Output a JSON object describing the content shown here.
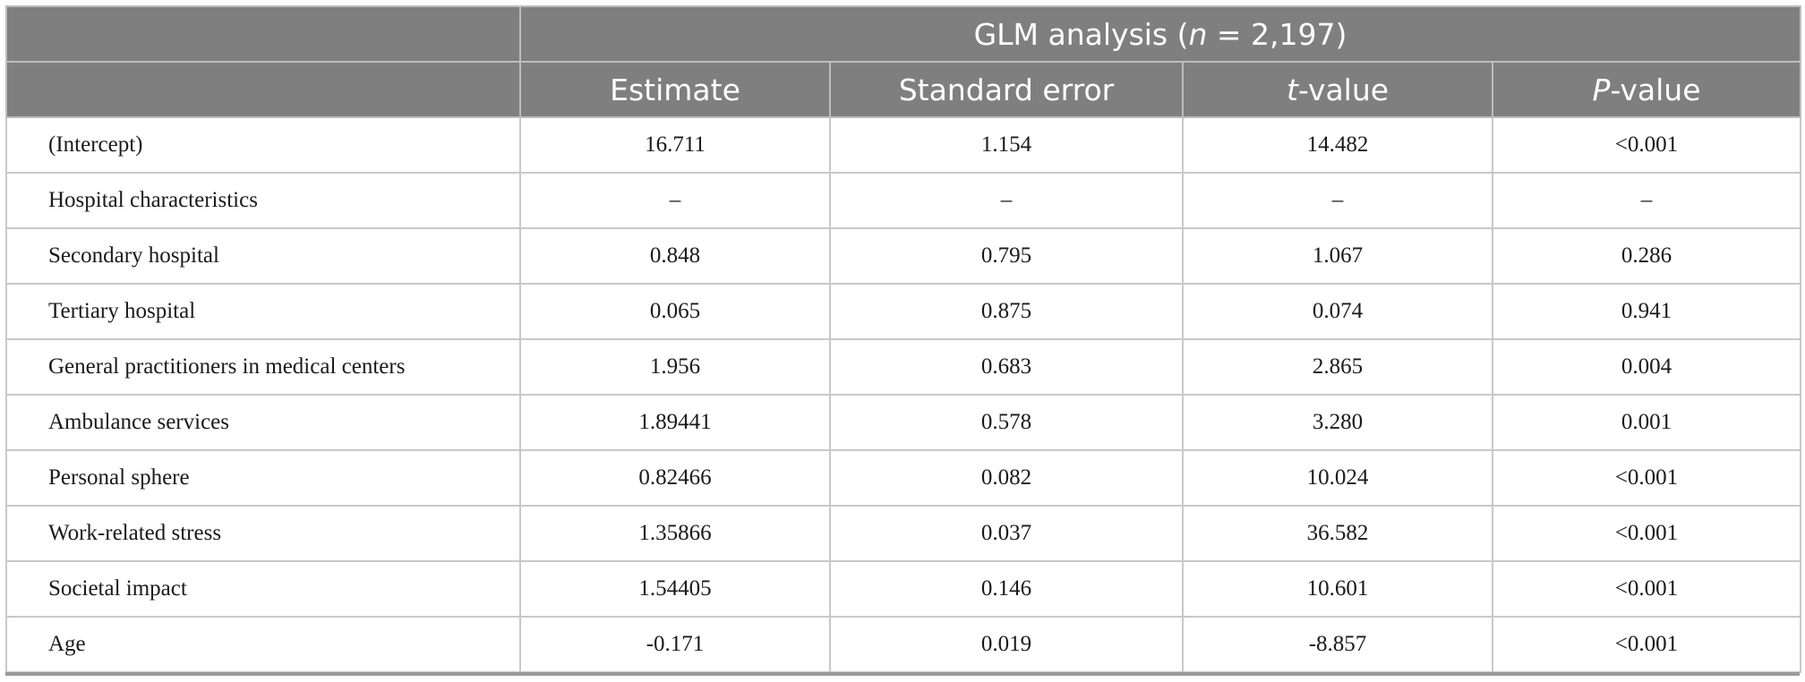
{
  "header": {
    "group_title_prefix": "GLM analysis (",
    "group_title_n": "n",
    "group_title_suffix": " = 2,197)",
    "columns": [
      {
        "label": "Estimate"
      },
      {
        "label": "Standard error"
      },
      {
        "italic": "t",
        "rest": "-value"
      },
      {
        "italic": "P",
        "rest": "-value"
      }
    ]
  },
  "rows": [
    {
      "label": "(Intercept)",
      "estimate": "16.711",
      "se": "1.154",
      "t": "14.482",
      "p": "<0.001"
    },
    {
      "label": "Hospital characteristics",
      "estimate": "–",
      "se": "–",
      "t": "–",
      "p": "–"
    },
    {
      "label": "Secondary hospital",
      "estimate": "0.848",
      "se": "0.795",
      "t": "1.067",
      "p": "0.286"
    },
    {
      "label": "Tertiary hospital",
      "estimate": "0.065",
      "se": "0.875",
      "t": "0.074",
      "p": "0.941"
    },
    {
      "label": "General practitioners in medical centers",
      "estimate": "1.956",
      "se": "0.683",
      "t": "2.865",
      "p": "0.004"
    },
    {
      "label": "Ambulance services",
      "estimate": "1.89441",
      "se": "0.578",
      "t": "3.280",
      "p": "0.001"
    },
    {
      "label": "Personal sphere",
      "estimate": "0.82466",
      "se": "0.082",
      "t": "10.024",
      "p": "<0.001"
    },
    {
      "label": "Work-related stress",
      "estimate": "1.35866",
      "se": "0.037",
      "t": "36.582",
      "p": "<0.001"
    },
    {
      "label": "Societal impact",
      "estimate": "1.54405",
      "se": "0.146",
      "t": "10.601",
      "p": "<0.001"
    },
    {
      "label": "Age",
      "estimate": "-0.171",
      "se": "0.019",
      "t": "-8.857",
      "p": "<0.001"
    }
  ]
}
